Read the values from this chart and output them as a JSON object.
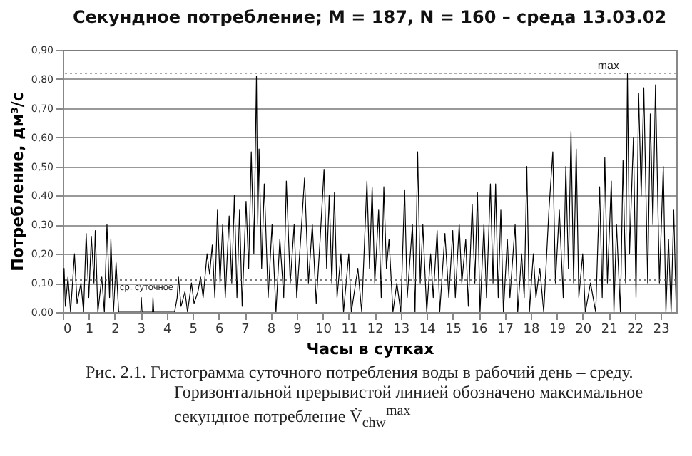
{
  "chart_data": {
    "type": "line",
    "title": "Секундное потребление; M = 187, N = 160 – среда 13.03.02",
    "xlabel": "Часы в сутках",
    "ylabel": "Потребление, дм³/с",
    "annotations": [
      "Рис. 2.1. Гистограмма суточного потребления воды в рабочий день – среду. Горизонтальной прерывистой линией обозначено максимальное секундное потребление V̇$_{chw}$$^{max}$"
    ],
    "x": [
      0,
      0.05,
      0.1,
      0.2,
      0.3,
      0.45,
      0.55,
      0.7,
      0.8,
      0.9,
      1.0,
      1.1,
      1.2,
      1.25,
      1.35,
      1.5,
      1.6,
      1.7,
      1.8,
      1.85,
      1.95,
      2.05,
      2.15,
      3.0,
      3.02,
      3.05,
      3.45,
      3.47,
      3.5,
      4.3,
      4.4,
      4.45,
      4.55,
      4.7,
      4.8,
      4.95,
      5.05,
      5.2,
      5.3,
      5.4,
      5.55,
      5.65,
      5.75,
      5.85,
      5.95,
      6.05,
      6.15,
      6.25,
      6.4,
      6.5,
      6.6,
      6.7,
      6.8,
      6.9,
      7.05,
      7.15,
      7.25,
      7.35,
      7.45,
      7.5,
      7.55,
      7.65,
      7.75,
      7.9,
      8.05,
      8.2,
      8.35,
      8.5,
      8.6,
      8.75,
      8.9,
      9.0,
      9.15,
      9.3,
      9.45,
      9.6,
      9.75,
      9.9,
      10.05,
      10.15,
      10.25,
      10.35,
      10.45,
      10.55,
      10.7,
      10.8,
      11.0,
      11.1,
      11.35,
      11.5,
      11.7,
      11.8,
      11.9,
      12.0,
      12.15,
      12.25,
      12.35,
      12.45,
      12.55,
      12.7,
      12.85,
      13.0,
      13.15,
      13.25,
      13.45,
      13.55,
      13.65,
      13.75,
      13.85,
      14.0,
      14.15,
      14.25,
      14.4,
      14.5,
      14.7,
      14.85,
      15.0,
      15.1,
      15.25,
      15.35,
      15.5,
      15.6,
      15.75,
      15.85,
      15.95,
      16.05,
      16.2,
      16.3,
      16.45,
      16.55,
      16.65,
      16.75,
      16.85,
      16.95,
      17.1,
      17.2,
      17.4,
      17.5,
      17.65,
      17.75,
      17.85,
      17.95,
      18.1,
      18.2,
      18.35,
      18.5,
      18.7,
      18.85,
      18.95,
      19.1,
      19.25,
      19.35,
      19.45,
      19.55,
      19.65,
      19.75,
      19.85,
      20.0,
      20.1,
      20.3,
      20.5,
      20.65,
      20.75,
      20.85,
      20.95,
      21.1,
      21.2,
      21.3,
      21.45,
      21.55,
      21.65,
      21.72,
      21.8,
      21.95,
      22.05,
      22.15,
      22.25,
      22.35,
      22.5,
      22.6,
      22.7,
      22.8,
      22.95,
      23.1,
      23.2,
      23.3,
      23.4,
      23.5,
      23.6
    ],
    "series": [
      {
        "color": "#000000",
        "values": [
          0.0,
          0.15,
          0.02,
          0.12,
          0.0,
          0.2,
          0.03,
          0.1,
          0.0,
          0.27,
          0.05,
          0.26,
          0.1,
          0.28,
          0.0,
          0.12,
          0.0,
          0.3,
          0.05,
          0.25,
          0.0,
          0.17,
          0.0,
          0.0,
          0.05,
          0.0,
          0.0,
          0.05,
          0.0,
          0.0,
          0.05,
          0.12,
          0.02,
          0.07,
          0.0,
          0.1,
          0.03,
          0.07,
          0.12,
          0.05,
          0.2,
          0.13,
          0.23,
          0.05,
          0.35,
          0.1,
          0.3,
          0.05,
          0.33,
          0.1,
          0.4,
          0.05,
          0.35,
          0.02,
          0.38,
          0.15,
          0.55,
          0.2,
          0.81,
          0.3,
          0.56,
          0.15,
          0.44,
          0.05,
          0.3,
          0.0,
          0.25,
          0.05,
          0.45,
          0.1,
          0.3,
          0.05,
          0.25,
          0.46,
          0.1,
          0.3,
          0.03,
          0.25,
          0.49,
          0.15,
          0.4,
          0.1,
          0.41,
          0.05,
          0.2,
          0.0,
          0.2,
          0.0,
          0.15,
          0.0,
          0.45,
          0.15,
          0.43,
          0.1,
          0.35,
          0.05,
          0.43,
          0.15,
          0.25,
          0.0,
          0.1,
          0.0,
          0.42,
          0.05,
          0.3,
          0.0,
          0.55,
          0.1,
          0.3,
          0.0,
          0.2,
          0.05,
          0.28,
          0.0,
          0.27,
          0.05,
          0.28,
          0.05,
          0.3,
          0.1,
          0.25,
          0.02,
          0.37,
          0.1,
          0.41,
          0.0,
          0.3,
          0.05,
          0.44,
          0.1,
          0.44,
          0.05,
          0.35,
          0.0,
          0.25,
          0.05,
          0.3,
          0.0,
          0.2,
          0.05,
          0.5,
          0.0,
          0.2,
          0.05,
          0.15,
          0.0,
          0.35,
          0.55,
          0.1,
          0.35,
          0.05,
          0.5,
          0.15,
          0.62,
          0.1,
          0.56,
          0.05,
          0.2,
          0.0,
          0.1,
          0.0,
          0.43,
          0.05,
          0.53,
          0.1,
          0.45,
          0.0,
          0.3,
          0.0,
          0.52,
          0.1,
          0.82,
          0.2,
          0.6,
          0.05,
          0.75,
          0.4,
          0.77,
          0.1,
          0.68,
          0.3,
          0.78,
          0.1,
          0.5,
          0.0,
          0.25,
          0.0,
          0.35,
          0.0
        ]
      }
    ],
    "xlim": [
      0,
      23.6
    ],
    "xticks": [
      0,
      1,
      2,
      3,
      4,
      5,
      6,
      7,
      8,
      9,
      10,
      11,
      12,
      13,
      14,
      15,
      16,
      17,
      18,
      19,
      20,
      21,
      22,
      23
    ],
    "ylim": [
      0,
      0.9
    ],
    "yticks": [
      {
        "value": 0,
        "label": "0,00"
      },
      {
        "value": 0.1,
        "label": "0,10"
      },
      {
        "value": 0.2,
        "label": "0,20"
      },
      {
        "value": 0.3,
        "label": "0,30"
      },
      {
        "value": 0.4,
        "label": "0,40"
      },
      {
        "value": 0.5,
        "label": "0,50"
      },
      {
        "value": 0.6,
        "label": "0,60"
      },
      {
        "value": 0.7,
        "label": "0,70"
      },
      {
        "value": 0.8,
        "label": "0,80"
      },
      {
        "value": 0.9,
        "label": "0,90"
      }
    ],
    "grid": "y",
    "ref_lines": [
      {
        "axis": "y",
        "value": 0.11,
        "label": "ср. суточное",
        "line_style": "dotted"
      },
      {
        "axis": "y",
        "value": 0.82,
        "label": "max",
        "line_style": "dotted"
      }
    ]
  }
}
